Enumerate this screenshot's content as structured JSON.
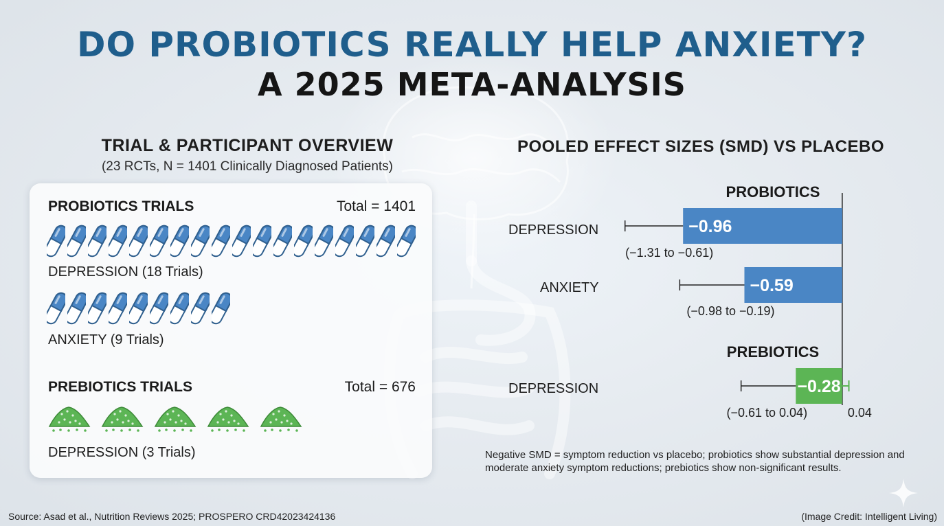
{
  "title": {
    "line1": "DO PROBIOTICS REALLY HELP ANXIETY?",
    "line2": "A 2025 META-ANALYSIS"
  },
  "overview": {
    "heading": "TRIAL & PARTICIPANT OVERVIEW",
    "subheading": "(23 RCTs, N = 1401 Clinically Diagnosed Patients)",
    "probiotics": {
      "heading": "PROBIOTICS TRIALS",
      "total": "Total = 1401",
      "depression": {
        "label": "DEPRESSION (18 Trials)",
        "count": 18
      },
      "anxiety": {
        "label": "ANXIETY (9 Trials)",
        "count": 9
      }
    },
    "prebiotics": {
      "heading": "PREBIOTICS TRIALS",
      "total": "Total = 676",
      "depression": {
        "label": "DEPRESSION (3 Trials)",
        "icon_count": 5
      }
    }
  },
  "colors": {
    "title_blue": "#1f5e8c",
    "probiotic_blue": "#4a86c5",
    "prebiotic_green": "#5cb555"
  },
  "icons": {
    "capsule": "capsule-icon",
    "powder": "powder-pile-icon",
    "sparkle": "sparkle-icon"
  },
  "chart_data": {
    "type": "forest",
    "title": "POOLED EFFECT SIZES (SMD) VS PLACEBO",
    "reference_line": 0,
    "xlim": [
      -1.4,
      0.1
    ],
    "groups": [
      {
        "name": "PROBIOTICS",
        "color": "#4a86c5",
        "rows": [
          {
            "outcome": "DEPRESSION",
            "smd": -0.96,
            "smd_label": "−0.96",
            "ci": [
              -1.31,
              -0.61
            ],
            "ci_label": "(−1.31 to −0.61)"
          },
          {
            "outcome": "ANXIETY",
            "smd": -0.59,
            "smd_label": "−0.59",
            "ci": [
              -0.98,
              -0.19
            ],
            "ci_label": "(−0.98 to −0.19)"
          }
        ]
      },
      {
        "name": "PREBIOTICS",
        "color": "#5cb555",
        "rows": [
          {
            "outcome": "DEPRESSION",
            "smd": -0.28,
            "smd_label": "−0.28",
            "ci": [
              -0.61,
              0.04
            ],
            "ci_label": "(−0.61 to 0.04)",
            "upper_label": "0.04"
          }
        ]
      }
    ]
  },
  "footnote": "Negative SMD = symptom reduction vs placebo; probiotics show substantial depression and moderate anxiety symptom reductions; prebiotics show non-significant results.",
  "source": "Source: Asad et al., Nutrition Reviews 2025; PROSPERO CRD42023424136",
  "credit": "(Image Credit: Intelligent Living)"
}
